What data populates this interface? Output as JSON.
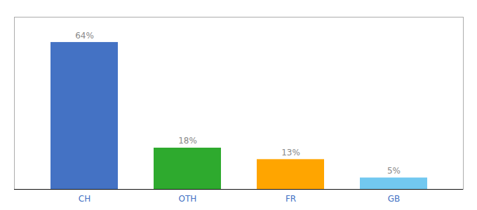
{
  "chart_data": {
    "type": "bar",
    "categories": [
      "CH",
      "OTH",
      "FR",
      "GB"
    ],
    "values": [
      64,
      18,
      13,
      5
    ],
    "value_labels": [
      "64%",
      "18%",
      "13%",
      "5%"
    ],
    "colors": [
      "#4472C4",
      "#2EAA2E",
      "#FFA500",
      "#72C8F0"
    ],
    "ylim": [
      0,
      75
    ],
    "data_labels": true,
    "tick_labels": "x",
    "grid": false
  }
}
